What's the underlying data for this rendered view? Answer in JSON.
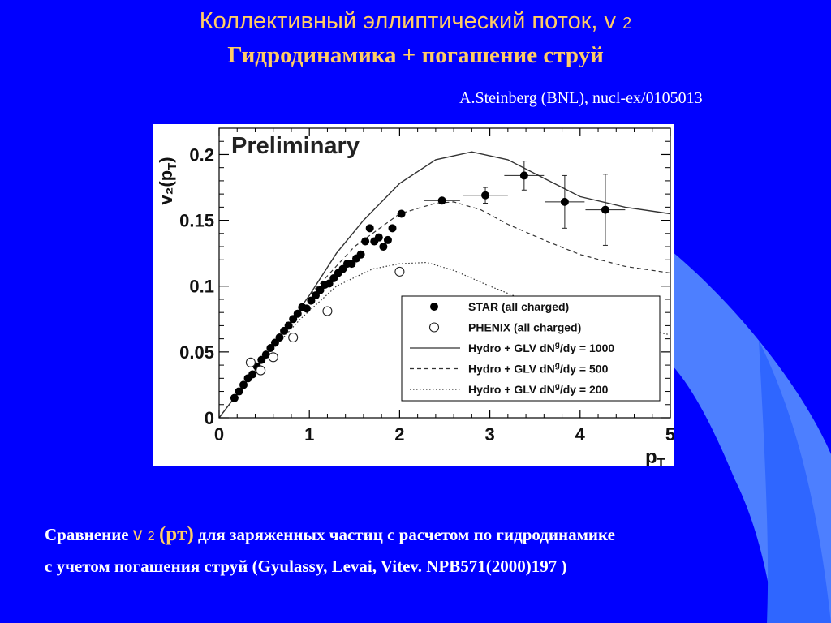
{
  "slide": {
    "title_line1_main": "Коллективный эллиптический поток, v",
    "title_line1_sub": "2",
    "title_line2": "Гидродинамика + погашение струй",
    "reference": "A.Steinberg (BNL), nucl-ex/0105013",
    "caption_prefix": "Сравнение",
    "caption_v": "v",
    "caption_sub": "2",
    "caption_pt": "(pт)",
    "caption_rest": "для заряженных частиц с расчетом по гидродинамике",
    "caption_line2": "с учетом погашения струй (Gyulassy, Levai, Vitev. NPB571(2000)197 )",
    "colors": {
      "background": "#0000ff",
      "title": "#ffcc66",
      "decoration_light": "#4d7fff",
      "decoration_mid": "#2a55ff"
    }
  },
  "chart_data": {
    "type": "scatter",
    "watermark": "Preliminary",
    "xlabel": "p",
    "xlabel_sub": "T",
    "ylabel": "v₂(p",
    "ylabel_sub": "T",
    "ylabel_end": ")",
    "xlim": [
      0,
      5
    ],
    "ylim": [
      0,
      0.22
    ],
    "xticks": [
      0,
      1,
      2,
      3,
      4,
      5
    ],
    "xtick_labels": [
      "0",
      "1",
      "2",
      "3",
      "4",
      "5"
    ],
    "yticks": [
      0,
      0.05,
      0.1,
      0.15,
      0.2
    ],
    "ytick_labels": [
      "0",
      "0.05",
      "0.1",
      "0.15",
      "0.2"
    ],
    "legend_position": "bottom-right",
    "series": [
      {
        "name": "STAR (all charged)",
        "kind": "filled",
        "points": [
          [
            0.17,
            0.015
          ],
          [
            0.22,
            0.02
          ],
          [
            0.27,
            0.025
          ],
          [
            0.32,
            0.03
          ],
          [
            0.37,
            0.033
          ],
          [
            0.42,
            0.039
          ],
          [
            0.47,
            0.044
          ],
          [
            0.52,
            0.048
          ],
          [
            0.57,
            0.053
          ],
          [
            0.62,
            0.057
          ],
          [
            0.67,
            0.061
          ],
          [
            0.72,
            0.066
          ],
          [
            0.77,
            0.07
          ],
          [
            0.82,
            0.075
          ],
          [
            0.87,
            0.079
          ],
          [
            0.92,
            0.084
          ],
          [
            0.97,
            0.083
          ],
          [
            1.02,
            0.089
          ],
          [
            1.07,
            0.093
          ],
          [
            1.12,
            0.097
          ],
          [
            1.17,
            0.101
          ],
          [
            1.22,
            0.102
          ],
          [
            1.27,
            0.106
          ],
          [
            1.32,
            0.11
          ],
          [
            1.37,
            0.113
          ],
          [
            1.42,
            0.117
          ],
          [
            1.47,
            0.117
          ],
          [
            1.52,
            0.121
          ],
          [
            1.57,
            0.124
          ],
          [
            1.62,
            0.134
          ],
          [
            1.67,
            0.144
          ],
          [
            1.72,
            0.134
          ],
          [
            1.77,
            0.137
          ],
          [
            1.82,
            0.13
          ],
          [
            1.87,
            0.135
          ],
          [
            1.92,
            0.144
          ],
          [
            2.02,
            0.155
          ],
          [
            2.47,
            0.165
          ],
          [
            2.95,
            0.169
          ],
          [
            3.38,
            0.184
          ],
          [
            3.83,
            0.164
          ],
          [
            4.28,
            0.158
          ]
        ],
        "errors": [
          {
            "x": 2.47,
            "xerr": 0.2,
            "yerr": 0.002
          },
          {
            "x": 2.95,
            "xerr": 0.25,
            "yerr": 0.006
          },
          {
            "x": 3.38,
            "xerr": 0.22,
            "yerr": 0.011
          },
          {
            "x": 3.83,
            "xerr": 0.22,
            "yerr": 0.02
          },
          {
            "x": 4.28,
            "xerr": 0.22,
            "yerr": 0.027
          }
        ]
      },
      {
        "name": "PHENIX (all charged)",
        "kind": "open",
        "points": [
          [
            0.35,
            0.042
          ],
          [
            0.46,
            0.036
          ],
          [
            0.6,
            0.046
          ],
          [
            0.82,
            0.061
          ],
          [
            1.2,
            0.081
          ],
          [
            2.0,
            0.111
          ]
        ]
      },
      {
        "name": "Hydro + GLV dN^g/dy = 1000",
        "kind": "solid",
        "curve": [
          [
            0.0,
            0.0
          ],
          [
            0.5,
            0.045
          ],
          [
            1.0,
            0.093
          ],
          [
            1.3,
            0.125
          ],
          [
            1.6,
            0.15
          ],
          [
            2.0,
            0.178
          ],
          [
            2.4,
            0.196
          ],
          [
            2.8,
            0.202
          ],
          [
            3.2,
            0.196
          ],
          [
            3.6,
            0.182
          ],
          [
            4.0,
            0.168
          ],
          [
            4.5,
            0.16
          ],
          [
            5.0,
            0.155
          ]
        ]
      },
      {
        "name": "Hydro + GLV dN^g/dy = 500",
        "kind": "dashed",
        "curve": [
          [
            0.0,
            0.0
          ],
          [
            0.5,
            0.045
          ],
          [
            1.0,
            0.093
          ],
          [
            1.5,
            0.13
          ],
          [
            2.0,
            0.155
          ],
          [
            2.4,
            0.163
          ],
          [
            2.6,
            0.164
          ],
          [
            2.9,
            0.158
          ],
          [
            3.2,
            0.147
          ],
          [
            3.6,
            0.135
          ],
          [
            4.0,
            0.124
          ],
          [
            4.5,
            0.115
          ],
          [
            5.0,
            0.11
          ]
        ]
      },
      {
        "name": "Hydro + GLV dN^g/dy = 200",
        "kind": "dotted",
        "curve": [
          [
            0.0,
            0.0
          ],
          [
            0.5,
            0.045
          ],
          [
            0.9,
            0.075
          ],
          [
            1.3,
            0.1
          ],
          [
            1.7,
            0.113
          ],
          [
            2.0,
            0.117
          ],
          [
            2.3,
            0.118
          ],
          [
            2.6,
            0.112
          ],
          [
            3.0,
            0.1
          ],
          [
            3.4,
            0.089
          ],
          [
            3.8,
            0.08
          ],
          [
            4.3,
            0.073
          ],
          [
            5.0,
            0.063
          ]
        ]
      }
    ],
    "legend_entries": [
      {
        "label": "STAR (all charged)",
        "kind": "filled"
      },
      {
        "label": "PHENIX (all charged)",
        "kind": "open"
      },
      {
        "label": "Hydro + GLV dN",
        "sup": "g",
        "label_end": "/dy = 1000",
        "kind": "solid"
      },
      {
        "label": "Hydro + GLV dN",
        "sup": "g",
        "label_end": "/dy = 500",
        "kind": "dashed"
      },
      {
        "label": "Hydro + GLV dN",
        "sup": "g",
        "label_end": "/dy = 200",
        "kind": "dotted"
      }
    ]
  }
}
